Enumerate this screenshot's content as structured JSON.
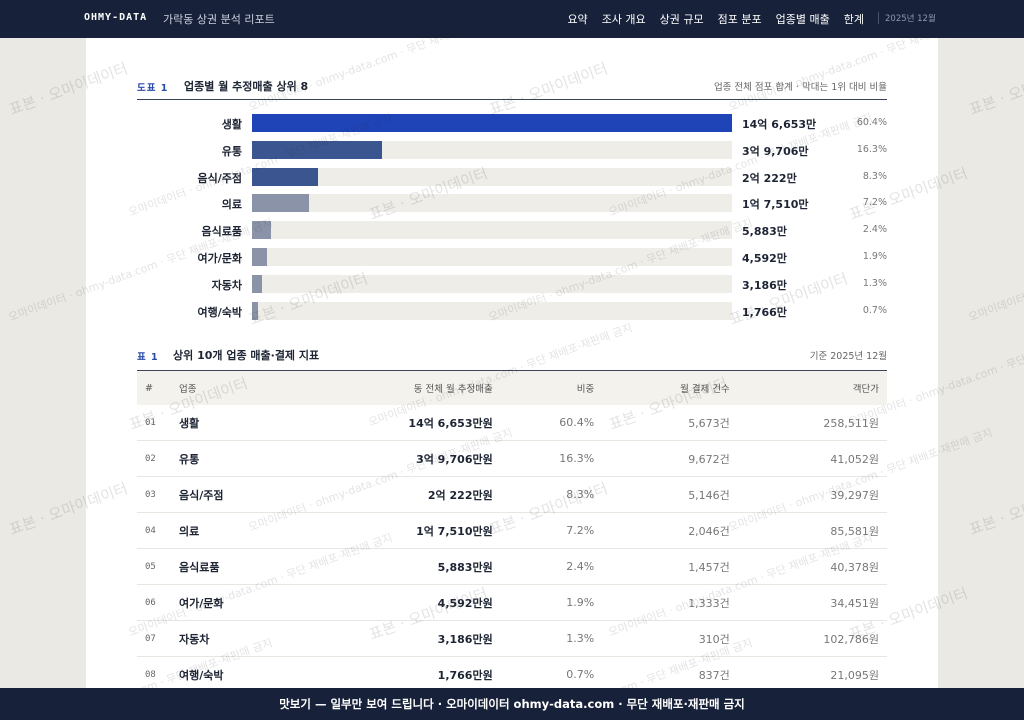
{
  "nav": {
    "brand": "OHMY-DATA",
    "subtitle": "가락동 상권 분석 리포트",
    "links": [
      "요약",
      "조사 개요",
      "상권 규모",
      "점포 분포",
      "업종별 매출",
      "한계"
    ],
    "date": "2025년 12월"
  },
  "figure": {
    "label": "도표 1",
    "title": "업종별 월 추정매출 상위 8",
    "note": "업종 전체 점포 합계 · 막대는 1위 대비 비율"
  },
  "chart_data": {
    "type": "bar",
    "orientation": "horizontal",
    "categories": [
      "생활",
      "유통",
      "음식/주점",
      "의료",
      "음식료품",
      "여가/문화",
      "자동차",
      "여행/숙박"
    ],
    "values": [
      146653,
      39706,
      20222,
      17510,
      5883,
      4592,
      3186,
      1766
    ],
    "value_labels": [
      "14억 6,653만",
      "3억 9,706만",
      "2억 222만",
      "1억 7,510만",
      "5,883만",
      "4,592만",
      "3,186만",
      "1,766만"
    ],
    "shares": [
      "60.4%",
      "16.3%",
      "8.3%",
      "7.2%",
      "2.4%",
      "1.9%",
      "1.3%",
      "0.7%"
    ],
    "colors": [
      "#1f44b8",
      "#3a5590",
      "#3a5590",
      "#8a93a8",
      "#8a93a8",
      "#8a93a8",
      "#8a93a8",
      "#8a93a8"
    ]
  },
  "table": {
    "label": "표 1",
    "title": "상위 10개 업종 매출·결제 지표",
    "note": "기준 2025년 12월",
    "columns": [
      "#",
      "업종",
      "동 전체 월 추정매출",
      "비중",
      "월 결제 건수",
      "객단가"
    ],
    "rows": [
      [
        "01",
        "생활",
        "14억 6,653만원",
        "60.4%",
        "5,673건",
        "258,511원"
      ],
      [
        "02",
        "유통",
        "3억 9,706만원",
        "16.3%",
        "9,672건",
        "41,052원"
      ],
      [
        "03",
        "음식/주점",
        "2억 222만원",
        "8.3%",
        "5,146건",
        "39,297원"
      ],
      [
        "04",
        "의료",
        "1억 7,510만원",
        "7.2%",
        "2,046건",
        "85,581원"
      ],
      [
        "05",
        "음식료품",
        "5,883만원",
        "2.4%",
        "1,457건",
        "40,378원"
      ],
      [
        "06",
        "여가/문화",
        "4,592만원",
        "1.9%",
        "1,333건",
        "34,451원"
      ],
      [
        "07",
        "자동차",
        "3,186만원",
        "1.3%",
        "310건",
        "102,786원"
      ],
      [
        "08",
        "여행/숙박",
        "1,766만원",
        "0.7%",
        "837건",
        "21,095원"
      ]
    ]
  },
  "footer": "맛보기 — 일부만 보여 드립니다 · 오마이데이터 ohmy-data.com · 무단 재배포·재판매 금지",
  "watermarks": [
    "표본 · 오마이데이터",
    "오마이데이터 · ohmy-data.com · 무단 재배포·재판매 금지"
  ]
}
